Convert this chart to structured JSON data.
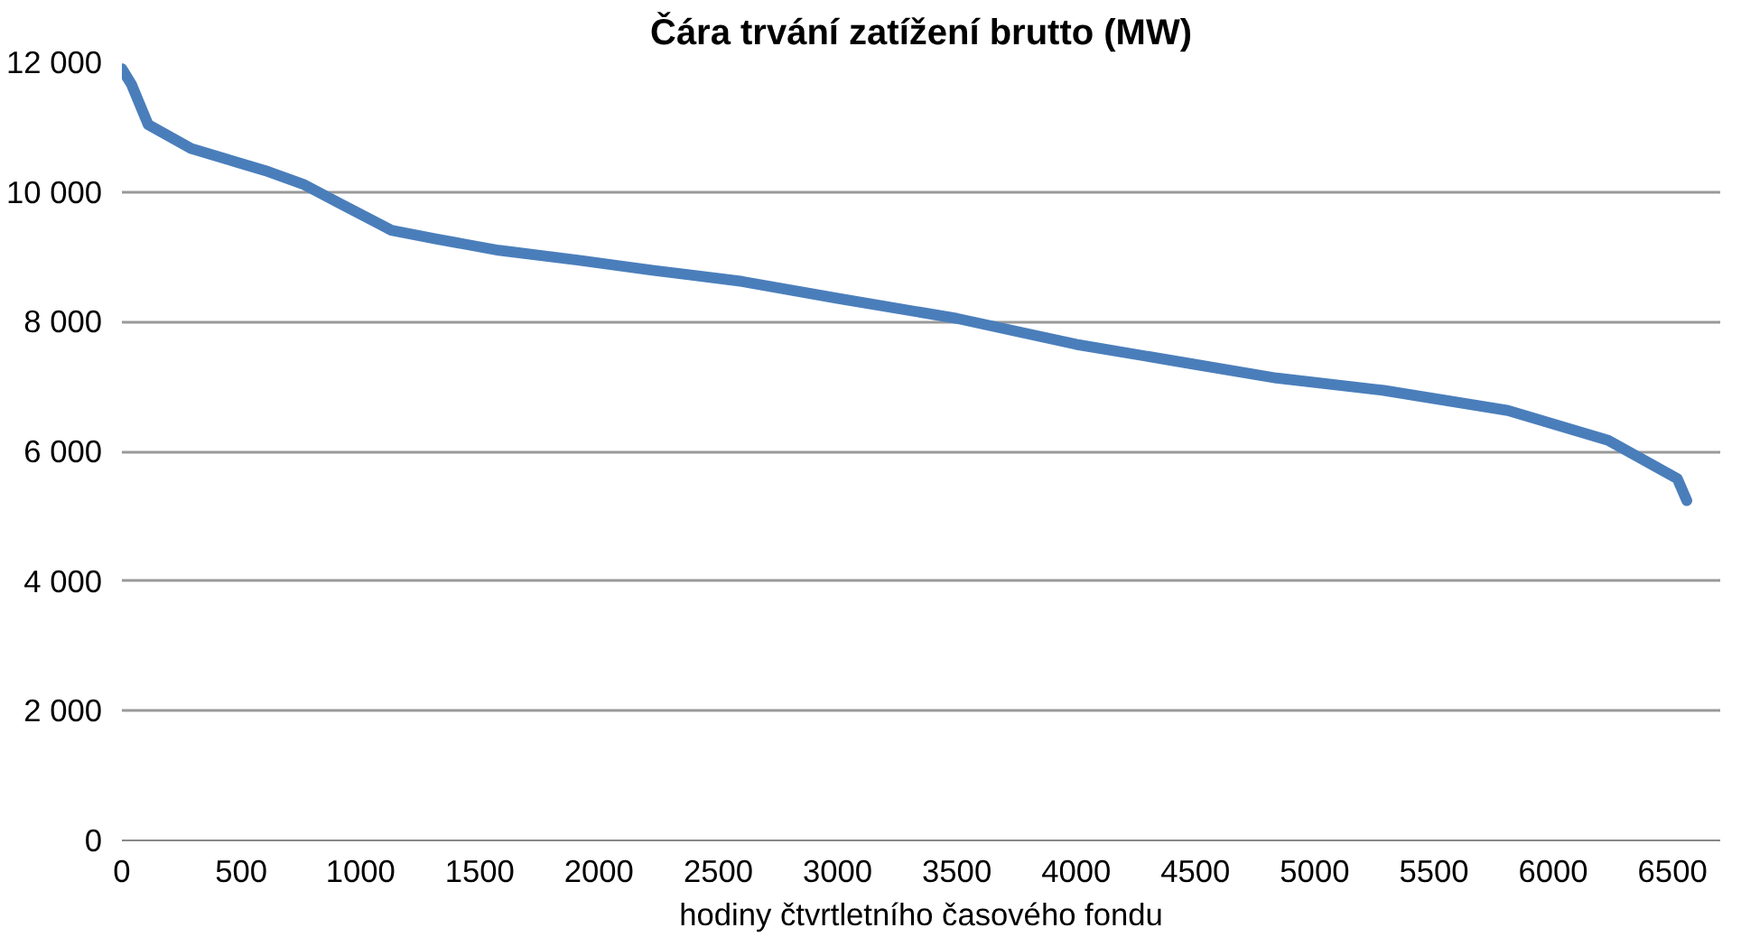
{
  "chart_data": {
    "type": "line",
    "title": "Čára trvání zatížení brutto (MW)",
    "xlabel": "hodiny čtvrtletního časového fondu",
    "x": [
      0,
      40,
      110,
      290,
      600,
      760,
      920,
      1130,
      1310,
      1580,
      1910,
      2230,
      2600,
      3000,
      3500,
      4000,
      4500,
      4840,
      5290,
      5810,
      6230,
      6520,
      6560
    ],
    "series": [
      {
        "color": "#4a7ebb",
        "values": [
          11900,
          11660,
          11040,
          10670,
          10330,
          10120,
          9810,
          9410,
          9280,
          9100,
          8950,
          8790,
          8620,
          8360,
          8050,
          7650,
          7340,
          7130,
          6940,
          6630,
          6170,
          5580,
          5240
        ]
      }
    ],
    "xlim": [
      0,
      6700
    ],
    "ylim": [
      0,
      12000
    ],
    "xticks": [
      0,
      500,
      1000,
      1500,
      2000,
      2500,
      3000,
      3500,
      4000,
      4500,
      5000,
      5500,
      6000,
      6500
    ],
    "yticks": [
      {
        "value": 0,
        "label": "0"
      },
      {
        "value": 2000,
        "label": "2 000"
      },
      {
        "value": 4000,
        "label": "4 000"
      },
      {
        "value": 6000,
        "label": "6 000"
      },
      {
        "value": 8000,
        "label": "8 000"
      },
      {
        "value": 10000,
        "label": "10 000"
      },
      {
        "value": 12000,
        "label": "12 000"
      }
    ],
    "grid": "y",
    "marker": "none",
    "line_style": "solid"
  }
}
